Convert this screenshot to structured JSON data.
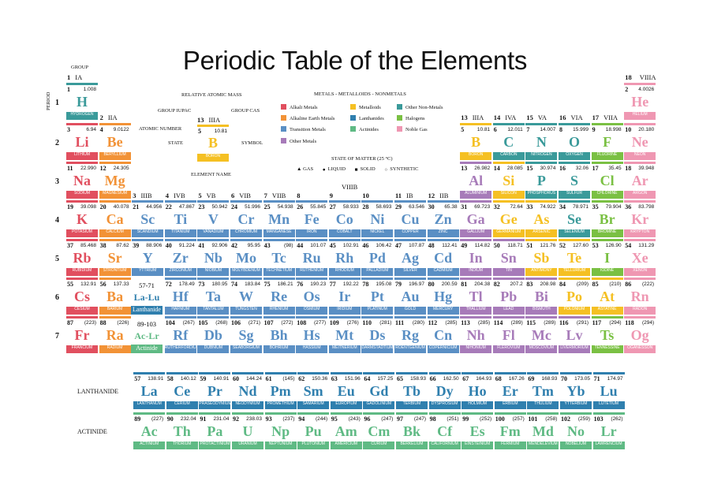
{
  "title": "Periodic Table of the Elements",
  "labels": {
    "group": "GROUP",
    "period": "PERIOD",
    "relative_atomic_mass": "RELATIVE ATOMIC MASS",
    "group_iupac": "GROUP IUPAC",
    "group_cas": "GROUP CAS",
    "atomic_number": "ATOMIC NUMBER",
    "state": "STATE",
    "symbol": "SYMBOL",
    "element_name": "ELEMENT NAME",
    "lanthanide": "LANTHANIDE",
    "actinide": "ACTINIDE",
    "ph_57_71": "57-71",
    "ph_la_lu": "La-Lu",
    "ph_lanthanide": "Lanthanide",
    "ph_89_103": "89-103",
    "ph_ac_lr": "Ac-Lr",
    "ph_actinide": "Actinide",
    "viiib": "VIIIB"
  },
  "key_sample": {
    "n": "5",
    "iupac": "13",
    "cas": "IIIA",
    "m": "10.81",
    "s": "B",
    "name": "BORON",
    "color": "#f5c023"
  },
  "legend": {
    "title": "METALS - METALLOIDS - NONMETALS",
    "items": [
      {
        "label": "Alkali Metals",
        "color": "#e14f5f"
      },
      {
        "label": "Alkaline Earth Metals",
        "color": "#f29236"
      },
      {
        "label": "Transition Metals",
        "color": "#5a8fc4"
      },
      {
        "label": "Other Metals",
        "color": "#a77bb9"
      },
      {
        "label": "Metalloids",
        "color": "#f5c023"
      },
      {
        "label": "Lanthanides",
        "color": "#2f7fae"
      },
      {
        "label": "Actinides",
        "color": "#5fba84"
      },
      {
        "label": "Other Non-Metals",
        "color": "#3a9a9a"
      },
      {
        "label": "Halogens",
        "color": "#7ac043"
      },
      {
        "label": "Noble Gas",
        "color": "#ef97b2"
      }
    ],
    "state_title": "STATE OF MATTER (25 °C)",
    "states": [
      "GAS",
      "LIQUID",
      "SOLID",
      "SYNTHETIC"
    ]
  },
  "groups": [
    {
      "n": "1",
      "r": "IA"
    },
    {
      "n": "2",
      "r": "IIA"
    },
    {
      "n": "3",
      "r": "IIIB"
    },
    {
      "n": "4",
      "r": "IVB"
    },
    {
      "n": "5",
      "r": "VB"
    },
    {
      "n": "6",
      "r": "VIB"
    },
    {
      "n": "7",
      "r": "VIIB"
    },
    {
      "n": "8",
      "r": ""
    },
    {
      "n": "9",
      "r": ""
    },
    {
      "n": "10",
      "r": ""
    },
    {
      "n": "11",
      "r": "IB"
    },
    {
      "n": "12",
      "r": "IIB"
    },
    {
      "n": "13",
      "r": "IIIA"
    },
    {
      "n": "14",
      "r": "IVA"
    },
    {
      "n": "15",
      "r": "VA"
    },
    {
      "n": "16",
      "r": "VIA"
    },
    {
      "n": "17",
      "r": "VIIA"
    },
    {
      "n": "18",
      "r": "VIIIA"
    }
  ],
  "periods": [
    "1",
    "2",
    "3",
    "4",
    "5",
    "6",
    "7"
  ],
  "colors": {
    "alkali": "#e14f5f",
    "alkaline": "#f29236",
    "transition": "#5a8fc4",
    "post": "#a77bb9",
    "metalloid": "#f5c023",
    "nonmetal": "#3a9a9a",
    "halogen": "#7ac043",
    "noble": "#ef97b2",
    "lanthanide": "#2f7fae",
    "actinide": "#5fba84"
  },
  "elements": [
    {
      "n": "1",
      "s": "H",
      "name": "HYDROGEN",
      "m": "1.008",
      "c": "nonmetal",
      "p": 1,
      "g": 1
    },
    {
      "n": "2",
      "s": "He",
      "name": "HELIUM",
      "m": "4.0026",
      "c": "noble",
      "p": 1,
      "g": 18
    },
    {
      "n": "3",
      "s": "Li",
      "name": "LITHIUM",
      "m": "6.94",
      "c": "alkali",
      "p": 2,
      "g": 1
    },
    {
      "n": "4",
      "s": "Be",
      "name": "BERYLLIUM",
      "m": "9.0122",
      "c": "alkaline",
      "p": 2,
      "g": 2
    },
    {
      "n": "5",
      "s": "B",
      "name": "BORON",
      "m": "10.81",
      "c": "metalloid",
      "p": 2,
      "g": 13
    },
    {
      "n": "6",
      "s": "C",
      "name": "CARBON",
      "m": "12.011",
      "c": "nonmetal",
      "p": 2,
      "g": 14
    },
    {
      "n": "7",
      "s": "N",
      "name": "NITROGEN",
      "m": "14.007",
      "c": "nonmetal",
      "p": 2,
      "g": 15
    },
    {
      "n": "8",
      "s": "O",
      "name": "OXYGEN",
      "m": "15.999",
      "c": "nonmetal",
      "p": 2,
      "g": 16
    },
    {
      "n": "9",
      "s": "F",
      "name": "FLUORINE",
      "m": "18.998",
      "c": "halogen",
      "p": 2,
      "g": 17
    },
    {
      "n": "10",
      "s": "Ne",
      "name": "NEON",
      "m": "20.180",
      "c": "noble",
      "p": 2,
      "g": 18
    },
    {
      "n": "11",
      "s": "Na",
      "name": "SODIUM",
      "m": "22.990",
      "c": "alkali",
      "p": 3,
      "g": 1
    },
    {
      "n": "12",
      "s": "Mg",
      "name": "MAGNESIUM",
      "m": "24.305",
      "c": "alkaline",
      "p": 3,
      "g": 2
    },
    {
      "n": "13",
      "s": "Al",
      "name": "ALUMINIUM",
      "m": "26.982",
      "c": "post",
      "p": 3,
      "g": 13
    },
    {
      "n": "14",
      "s": "Si",
      "name": "SILICON",
      "m": "28.085",
      "c": "metalloid",
      "p": 3,
      "g": 14
    },
    {
      "n": "15",
      "s": "P",
      "name": "PHOSPHORUS",
      "m": "30.974",
      "c": "nonmetal",
      "p": 3,
      "g": 15
    },
    {
      "n": "16",
      "s": "S",
      "name": "SULFUR",
      "m": "32.06",
      "c": "nonmetal",
      "p": 3,
      "g": 16
    },
    {
      "n": "17",
      "s": "Cl",
      "name": "CHLORINE",
      "m": "35.45",
      "c": "halogen",
      "p": 3,
      "g": 17
    },
    {
      "n": "18",
      "s": "Ar",
      "name": "ARGON",
      "m": "39.948",
      "c": "noble",
      "p": 3,
      "g": 18
    },
    {
      "n": "19",
      "s": "K",
      "name": "POTASIUM",
      "m": "39.098",
      "c": "alkali",
      "p": 4,
      "g": 1
    },
    {
      "n": "20",
      "s": "Ca",
      "name": "CALCIUM",
      "m": "40.078",
      "c": "alkaline",
      "p": 4,
      "g": 2
    },
    {
      "n": "21",
      "s": "Sc",
      "name": "SCANDIUM",
      "m": "44.956",
      "c": "transition",
      "p": 4,
      "g": 3
    },
    {
      "n": "22",
      "s": "Ti",
      "name": "TITANIUM",
      "m": "47.867",
      "c": "transition",
      "p": 4,
      "g": 4
    },
    {
      "n": "23",
      "s": "V",
      "name": "VANADIUM",
      "m": "50.942",
      "c": "transition",
      "p": 4,
      "g": 5
    },
    {
      "n": "24",
      "s": "Cr",
      "name": "CHROMIUM",
      "m": "51.996",
      "c": "transition",
      "p": 4,
      "g": 6
    },
    {
      "n": "25",
      "s": "Mn",
      "name": "MANGANESE",
      "m": "54.938",
      "c": "transition",
      "p": 4,
      "g": 7
    },
    {
      "n": "26",
      "s": "Fe",
      "name": "IRON",
      "m": "55.845",
      "c": "transition",
      "p": 4,
      "g": 8
    },
    {
      "n": "27",
      "s": "Co",
      "name": "COBALT",
      "m": "58.933",
      "c": "transition",
      "p": 4,
      "g": 9
    },
    {
      "n": "28",
      "s": "Ni",
      "name": "NICKEL",
      "m": "58.693",
      "c": "transition",
      "p": 4,
      "g": 10
    },
    {
      "n": "29",
      "s": "Cu",
      "name": "COPPER",
      "m": "63.546",
      "c": "transition",
      "p": 4,
      "g": 11
    },
    {
      "n": "30",
      "s": "Zn",
      "name": "ZINC",
      "m": "65.38",
      "c": "transition",
      "p": 4,
      "g": 12
    },
    {
      "n": "31",
      "s": "Ga",
      "name": "GALLIUM",
      "m": "69.723",
      "c": "post",
      "p": 4,
      "g": 13
    },
    {
      "n": "32",
      "s": "Ge",
      "name": "GERMANIUM",
      "m": "72.64",
      "c": "metalloid",
      "p": 4,
      "g": 14
    },
    {
      "n": "33",
      "s": "As",
      "name": "ARSENIC",
      "m": "74.922",
      "c": "metalloid",
      "p": 4,
      "g": 15
    },
    {
      "n": "34",
      "s": "Se",
      "name": "SELENIUM",
      "m": "78.971",
      "c": "nonmetal",
      "p": 4,
      "g": 16
    },
    {
      "n": "35",
      "s": "Br",
      "name": "BROMINE",
      "m": "79.904",
      "c": "halogen",
      "p": 4,
      "g": 17
    },
    {
      "n": "36",
      "s": "Kr",
      "name": "KRYPTON",
      "m": "83.798",
      "c": "noble",
      "p": 4,
      "g": 18
    },
    {
      "n": "37",
      "s": "Rb",
      "name": "RUBIDIUM",
      "m": "85.468",
      "c": "alkali",
      "p": 5,
      "g": 1
    },
    {
      "n": "38",
      "s": "Sr",
      "name": "STRONTIUM",
      "m": "87.62",
      "c": "alkaline",
      "p": 5,
      "g": 2
    },
    {
      "n": "39",
      "s": "Y",
      "name": "YTTRIUM",
      "m": "88.906",
      "c": "transition",
      "p": 5,
      "g": 3
    },
    {
      "n": "40",
      "s": "Zr",
      "name": "ZIRCONIUM",
      "m": "91.224",
      "c": "transition",
      "p": 5,
      "g": 4
    },
    {
      "n": "41",
      "s": "Nb",
      "name": "NIOBIUM",
      "m": "92.906",
      "c": "transition",
      "p": 5,
      "g": 5
    },
    {
      "n": "42",
      "s": "Mo",
      "name": "MOLYBDENUM",
      "m": "95.95",
      "c": "transition",
      "p": 5,
      "g": 6
    },
    {
      "n": "43",
      "s": "Tc",
      "name": "TECHNETIUM",
      "m": "(98)",
      "c": "transition",
      "p": 5,
      "g": 7
    },
    {
      "n": "44",
      "s": "Ru",
      "name": "RUTHENIUM",
      "m": "101.07",
      "c": "transition",
      "p": 5,
      "g": 8
    },
    {
      "n": "45",
      "s": "Rh",
      "name": "RHODIUM",
      "m": "102.91",
      "c": "transition",
      "p": 5,
      "g": 9
    },
    {
      "n": "46",
      "s": "Pd",
      "name": "PALLADIUM",
      "m": "106.42",
      "c": "transition",
      "p": 5,
      "g": 10
    },
    {
      "n": "47",
      "s": "Ag",
      "name": "SILVER",
      "m": "107.87",
      "c": "transition",
      "p": 5,
      "g": 11
    },
    {
      "n": "48",
      "s": "Cd",
      "name": "CADMIUM",
      "m": "112.41",
      "c": "transition",
      "p": 5,
      "g": 12
    },
    {
      "n": "49",
      "s": "In",
      "name": "INDIUM",
      "m": "114.82",
      "c": "post",
      "p": 5,
      "g": 13
    },
    {
      "n": "50",
      "s": "Sn",
      "name": "TIN",
      "m": "118.71",
      "c": "post",
      "p": 5,
      "g": 14
    },
    {
      "n": "51",
      "s": "Sb",
      "name": "ANTIMONY",
      "m": "121.76",
      "c": "metalloid",
      "p": 5,
      "g": 15
    },
    {
      "n": "52",
      "s": "Te",
      "name": "TELLURIUM",
      "m": "127.60",
      "c": "metalloid",
      "p": 5,
      "g": 16
    },
    {
      "n": "53",
      "s": "I",
      "name": "IODINE",
      "m": "126.90",
      "c": "halogen",
      "p": 5,
      "g": 17
    },
    {
      "n": "54",
      "s": "Xe",
      "name": "XENON",
      "m": "131.29",
      "c": "noble",
      "p": 5,
      "g": 18
    },
    {
      "n": "55",
      "s": "Cs",
      "name": "CESIUM",
      "m": "132.91",
      "c": "alkali",
      "p": 6,
      "g": 1
    },
    {
      "n": "56",
      "s": "Ba",
      "name": "BARIUM",
      "m": "137.33",
      "c": "alkaline",
      "p": 6,
      "g": 2
    },
    {
      "n": "72",
      "s": "Hf",
      "name": "HAFNIUM",
      "m": "178.49",
      "c": "transition",
      "p": 6,
      "g": 4
    },
    {
      "n": "73",
      "s": "Ta",
      "name": "TANTALUM",
      "m": "180.95",
      "c": "transition",
      "p": 6,
      "g": 5
    },
    {
      "n": "74",
      "s": "W",
      "name": "TUNGSTEN",
      "m": "183.84",
      "c": "transition",
      "p": 6,
      "g": 6
    },
    {
      "n": "75",
      "s": "Re",
      "name": "RHENIUM",
      "m": "186.21",
      "c": "transition",
      "p": 6,
      "g": 7
    },
    {
      "n": "76",
      "s": "Os",
      "name": "OSMIUM",
      "m": "190.23",
      "c": "transition",
      "p": 6,
      "g": 8
    },
    {
      "n": "77",
      "s": "Ir",
      "name": "IRIDIUM",
      "m": "192.22",
      "c": "transition",
      "p": 6,
      "g": 9
    },
    {
      "n": "78",
      "s": "Pt",
      "name": "PLATINUM",
      "m": "195.08",
      "c": "transition",
      "p": 6,
      "g": 10
    },
    {
      "n": "79",
      "s": "Au",
      "name": "GOLD",
      "m": "196.97",
      "c": "transition",
      "p": 6,
      "g": 11
    },
    {
      "n": "80",
      "s": "Hg",
      "name": "MERCURY",
      "m": "200.59",
      "c": "transition",
      "p": 6,
      "g": 12
    },
    {
      "n": "81",
      "s": "Tl",
      "name": "THALLIUM",
      "m": "204.38",
      "c": "post",
      "p": 6,
      "g": 13
    },
    {
      "n": "82",
      "s": "Pb",
      "name": "LEAD",
      "m": "207.2",
      "c": "post",
      "p": 6,
      "g": 14
    },
    {
      "n": "83",
      "s": "Bi",
      "name": "BISMUTH",
      "m": "208.98",
      "c": "post",
      "p": 6,
      "g": 15
    },
    {
      "n": "84",
      "s": "Po",
      "name": "POLONIUM",
      "m": "(209)",
      "c": "metalloid",
      "p": 6,
      "g": 16
    },
    {
      "n": "85",
      "s": "At",
      "name": "ASTATINE",
      "m": "(210)",
      "c": "metalloid",
      "p": 6,
      "g": 17
    },
    {
      "n": "86",
      "s": "Rn",
      "name": "RADON",
      "m": "(222)",
      "c": "noble",
      "p": 6,
      "g": 18
    },
    {
      "n": "87",
      "s": "Fr",
      "name": "FRANCIUM",
      "m": "(223)",
      "c": "alkali",
      "p": 7,
      "g": 1
    },
    {
      "n": "88",
      "s": "Ra",
      "name": "RADIUM",
      "m": "(226)",
      "c": "alkaline",
      "p": 7,
      "g": 2
    },
    {
      "n": "104",
      "s": "Rf",
      "name": "RUTHERFORDIUM",
      "m": "(267)",
      "c": "transition",
      "p": 7,
      "g": 4
    },
    {
      "n": "105",
      "s": "Db",
      "name": "DUBNIUM",
      "m": "(268)",
      "c": "transition",
      "p": 7,
      "g": 5
    },
    {
      "n": "106",
      "s": "Sg",
      "name": "SEABORGIUM",
      "m": "(271)",
      "c": "transition",
      "p": 7,
      "g": 6
    },
    {
      "n": "107",
      "s": "Bh",
      "name": "BOHRIUM",
      "m": "(272)",
      "c": "transition",
      "p": 7,
      "g": 7
    },
    {
      "n": "108",
      "s": "Hs",
      "name": "HASSIUM",
      "m": "(277)",
      "c": "transition",
      "p": 7,
      "g": 8
    },
    {
      "n": "109",
      "s": "Mt",
      "name": "MEITNERIUM",
      "m": "(276)",
      "c": "transition",
      "p": 7,
      "g": 9
    },
    {
      "n": "110",
      "s": "Ds",
      "name": "DARMSTADTIUM",
      "m": "(281)",
      "c": "transition",
      "p": 7,
      "g": 10
    },
    {
      "n": "111",
      "s": "Rg",
      "name": "ROENTGENIUM",
      "m": "(280)",
      "c": "transition",
      "p": 7,
      "g": 11
    },
    {
      "n": "112",
      "s": "Cn",
      "name": "COPERNICIUM",
      "m": "(285)",
      "c": "transition",
      "p": 7,
      "g": 12
    },
    {
      "n": "113",
      "s": "Nh",
      "name": "NIHONIUM",
      "m": "(285)",
      "c": "post",
      "p": 7,
      "g": 13
    },
    {
      "n": "114",
      "s": "Fl",
      "name": "FLEROVIUM",
      "m": "(289)",
      "c": "post",
      "p": 7,
      "g": 14
    },
    {
      "n": "115",
      "s": "Mc",
      "name": "MOSCOVIUM",
      "m": "(289)",
      "c": "post",
      "p": 7,
      "g": 15
    },
    {
      "n": "116",
      "s": "Lv",
      "name": "LIVERMORIUM",
      "m": "(291)",
      "c": "post",
      "p": 7,
      "g": 16
    },
    {
      "n": "117",
      "s": "Ts",
      "name": "TENNESSINE",
      "m": "(294)",
      "c": "halogen",
      "p": 7,
      "g": 17
    },
    {
      "n": "118",
      "s": "Og",
      "name": "OGANESSON",
      "m": "(294)",
      "c": "noble",
      "p": 7,
      "g": 18
    }
  ],
  "lanthanides": [
    {
      "n": "57",
      "s": "La",
      "name": "LANTHANUM",
      "m": "138.91"
    },
    {
      "n": "58",
      "s": "Ce",
      "name": "CERIUM",
      "m": "140.12"
    },
    {
      "n": "59",
      "s": "Pr",
      "name": "PRASEODYMIUM",
      "m": "140.91"
    },
    {
      "n": "60",
      "s": "Nd",
      "name": "NEODYMIUM",
      "m": "144.24"
    },
    {
      "n": "61",
      "s": "Pm",
      "name": "PROMETHIUM",
      "m": "(145)"
    },
    {
      "n": "62",
      "s": "Sm",
      "name": "SAMARIUM",
      "m": "150.36"
    },
    {
      "n": "63",
      "s": "Eu",
      "name": "EUROPIUM",
      "m": "151.96"
    },
    {
      "n": "64",
      "s": "Gd",
      "name": "GADOLINIUM",
      "m": "157.25"
    },
    {
      "n": "65",
      "s": "Tb",
      "name": "TERBIUM",
      "m": "158.93"
    },
    {
      "n": "66",
      "s": "Dy",
      "name": "DYSPROSIUM",
      "m": "162.50"
    },
    {
      "n": "67",
      "s": "Ho",
      "name": "HOLMIUM",
      "m": "164.93"
    },
    {
      "n": "68",
      "s": "Er",
      "name": "ERBIUM",
      "m": "167.26"
    },
    {
      "n": "69",
      "s": "Tm",
      "name": "THULIUM",
      "m": "168.93"
    },
    {
      "n": "70",
      "s": "Yb",
      "name": "YTTERBIUM",
      "m": "173.05"
    },
    {
      "n": "71",
      "s": "Lu",
      "name": "LUTETIUM",
      "m": "174.97"
    }
  ],
  "actinides": [
    {
      "n": "89",
      "s": "Ac",
      "name": "ACTINIUM",
      "m": "(227)"
    },
    {
      "n": "90",
      "s": "Th",
      "name": "THORIUM",
      "m": "232.04"
    },
    {
      "n": "91",
      "s": "Pa",
      "name": "PROTACTINIUM",
      "m": "231.04"
    },
    {
      "n": "92",
      "s": "U",
      "name": "URANIUM",
      "m": "238.03"
    },
    {
      "n": "93",
      "s": "Np",
      "name": "NEPTUNIUM",
      "m": "(237)"
    },
    {
      "n": "94",
      "s": "Pu",
      "name": "PLUTONIUM",
      "m": "(244)"
    },
    {
      "n": "95",
      "s": "Am",
      "name": "AMERICIUM",
      "m": "(243)"
    },
    {
      "n": "96",
      "s": "Cm",
      "name": "CURIUM",
      "m": "(247)"
    },
    {
      "n": "97",
      "s": "Bk",
      "name": "BERKELIUM",
      "m": "(247)"
    },
    {
      "n": "98",
      "s": "Cf",
      "name": "CALIFORNIUM",
      "m": "(251)"
    },
    {
      "n": "99",
      "s": "Es",
      "name": "EINSTEINIUM",
      "m": "(252)"
    },
    {
      "n": "100",
      "s": "Fm",
      "name": "FERMIUM",
      "m": "(257)"
    },
    {
      "n": "101",
      "s": "Md",
      "name": "MENDELEVIUM",
      "m": "(258)"
    },
    {
      "n": "102",
      "s": "No",
      "name": "NOBELIUM",
      "m": "(259)"
    },
    {
      "n": "103",
      "s": "Lr",
      "name": "LAWRENCIUM",
      "m": "(262)"
    }
  ]
}
